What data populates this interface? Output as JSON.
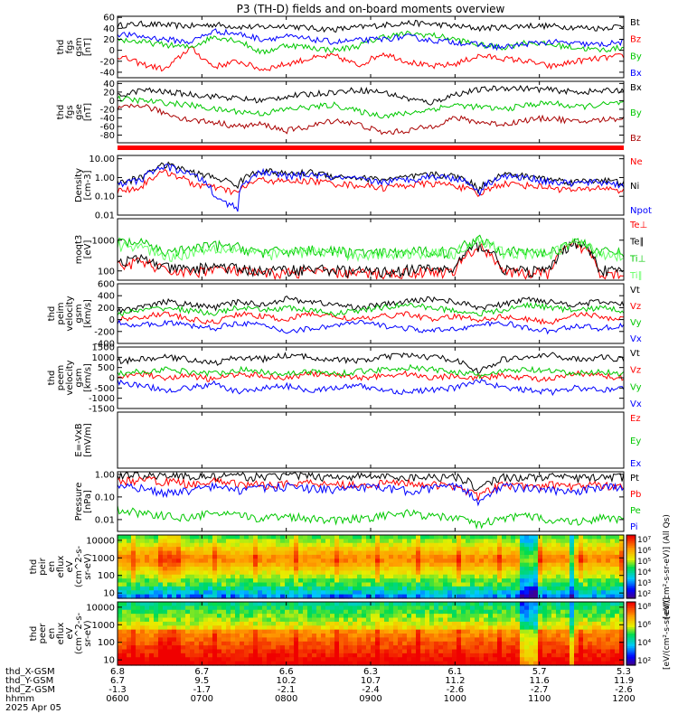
{
  "title": "P3 (TH-D) fields and on-board moments overview",
  "chart_data": [
    {
      "type": "line",
      "ylabel": [
        "thd",
        "fgs",
        "gsm",
        "[nT]"
      ],
      "ylim": [
        -50,
        62
      ],
      "yticks": [
        60,
        40,
        20,
        0,
        -20,
        -40
      ],
      "legend": [
        {
          "name": "Bt",
          "color": "#000000"
        },
        {
          "name": "Bz",
          "color": "#ff0000"
        },
        {
          "name": "By",
          "color": "#00c800"
        },
        {
          "name": "Bx",
          "color": "#0000ff"
        }
      ],
      "series": [
        {
          "name": "Bt",
          "color": "#000000",
          "values": [
            45,
            48,
            46,
            44,
            47,
            43,
            42,
            45,
            40,
            38,
            42,
            46,
            50,
            48,
            44,
            40,
            42,
            45,
            44,
            42,
            40,
            45
          ]
        },
        {
          "name": "Bz",
          "color": "#ff0000",
          "values": [
            -10,
            -25,
            -35,
            5,
            -30,
            -20,
            -35,
            -25,
            -15,
            -10,
            -28,
            -5,
            -20,
            -30,
            -25,
            -10,
            -15,
            -20,
            -30,
            -20,
            -15,
            -10
          ]
        },
        {
          "name": "By",
          "color": "#00c800",
          "values": [
            20,
            15,
            10,
            5,
            25,
            18,
            -5,
            10,
            5,
            0,
            8,
            25,
            30,
            28,
            20,
            10,
            5,
            15,
            10,
            5,
            0,
            5
          ]
        },
        {
          "name": "Bx",
          "color": "#0000ff",
          "values": [
            30,
            25,
            20,
            15,
            35,
            30,
            20,
            25,
            20,
            15,
            18,
            20,
            25,
            18,
            15,
            10,
            5,
            12,
            15,
            12,
            10,
            15
          ]
        }
      ]
    },
    {
      "type": "line",
      "ylabel": [
        "thd",
        "fgs",
        "gse",
        "[nT]"
      ],
      "ylim": [
        -98,
        45
      ],
      "yticks": [
        40,
        20,
        0,
        -20,
        -40,
        -60,
        -80
      ],
      "legend": [
        {
          "name": "Bx",
          "color": "#000000"
        },
        {
          "name": "By",
          "color": "#00c800"
        },
        {
          "name": "Bz",
          "color": "#aa0000"
        }
      ],
      "series": [
        {
          "name": "Bx",
          "color": "#000000",
          "values": [
            10,
            25,
            20,
            15,
            10,
            5,
            0,
            10,
            15,
            20,
            25,
            20,
            5,
            -5,
            15,
            25,
            30,
            28,
            25,
            20,
            22,
            25
          ]
        },
        {
          "name": "By",
          "color": "#00c800",
          "values": [
            5,
            0,
            -5,
            -10,
            -20,
            -25,
            -30,
            -20,
            -15,
            -10,
            -25,
            -35,
            -30,
            -20,
            -10,
            -15,
            -20,
            -10,
            -5,
            -15,
            -10,
            -5
          ]
        },
        {
          "name": "Bz",
          "color": "#aa0000",
          "values": [
            -20,
            -10,
            -30,
            -45,
            -50,
            -60,
            -55,
            -70,
            -60,
            -45,
            -55,
            -75,
            -70,
            -60,
            -40,
            -50,
            -55,
            -45,
            -40,
            -50,
            -45,
            -40
          ]
        }
      ]
    },
    {
      "type": "line",
      "ylabel": [
        "Density",
        "[cm-3]"
      ],
      "yscale": "log",
      "ylim": [
        0.01,
        15
      ],
      "yticks": [
        10.0,
        1.0,
        0.1,
        0.01
      ],
      "ytick_labels": [
        "10.00",
        "1.00",
        "0.10",
        "0.01"
      ],
      "legend": [
        {
          "name": "Ne",
          "color": "#ff0000"
        },
        {
          "name": "Ni",
          "color": "#000000"
        },
        {
          "name": "Npot",
          "color": "#0000ff"
        }
      ],
      "series": [
        {
          "name": "Ne",
          "color": "#ff0000",
          "values": [
            0.2,
            0.3,
            2.0,
            0.5,
            0.3,
            0.15,
            0.8,
            0.6,
            0.7,
            0.5,
            0.4,
            0.3,
            0.4,
            0.5,
            0.4,
            0.1,
            0.5,
            0.4,
            0.3,
            0.2,
            0.3,
            0.2
          ]
        },
        {
          "name": "Ni",
          "color": "#000000",
          "values": [
            0.5,
            1.0,
            5.0,
            2.0,
            1.0,
            0.4,
            2.5,
            1.5,
            2.0,
            1.2,
            1.0,
            0.8,
            1.0,
            1.5,
            1.2,
            0.2,
            1.5,
            1.2,
            0.8,
            0.6,
            0.8,
            0.5
          ]
        },
        {
          "name": "Npot",
          "color": "#0000ff",
          "values": [
            0.4,
            0.8,
            4.0,
            1.5,
            0.08,
            0.02,
            2.0,
            1.2,
            1.5,
            1.0,
            0.8,
            0.6,
            0.8,
            1.2,
            1.0,
            0.15,
            1.2,
            1.0,
            0.6,
            0.5,
            0.6,
            0.4
          ]
        }
      ]
    },
    {
      "type": "line",
      "ylabel": [
        "moqt3",
        "[eV]"
      ],
      "yscale": "log",
      "ylim": [
        50,
        5000
      ],
      "yticks": [
        1000,
        100
      ],
      "ytick_labels": [
        "1000",
        "100"
      ],
      "legend": [
        {
          "name": "Te⊥",
          "color": "#ff0000"
        },
        {
          "name": "Te∥",
          "color": "#000000"
        },
        {
          "name": "Ti⊥",
          "color": "#00c800"
        },
        {
          "name": "Ti∥",
          "color": "#66ff66"
        }
      ],
      "series": [
        {
          "name": "Te⊥",
          "color": "#ff0000",
          "values": [
            150,
            200,
            100,
            90,
            120,
            100,
            80,
            90,
            100,
            90,
            85,
            80,
            90,
            100,
            90,
            600,
            90,
            85,
            90,
            800,
            90,
            85
          ]
        },
        {
          "name": "Te∥",
          "color": "#000000",
          "values": [
            200,
            250,
            130,
            110,
            150,
            120,
            100,
            110,
            120,
            110,
            100,
            95,
            110,
            120,
            110,
            700,
            110,
            100,
            110,
            900,
            110,
            100
          ]
        },
        {
          "name": "Ti⊥",
          "color": "#00c800",
          "values": [
            900,
            800,
            400,
            500,
            700,
            600,
            400,
            450,
            500,
            450,
            400,
            380,
            420,
            450,
            420,
            1200,
            450,
            420,
            400,
            1000,
            420,
            400
          ]
        },
        {
          "name": "Ti∥",
          "color": "#66ff66",
          "values": [
            700,
            600,
            300,
            400,
            600,
            500,
            350,
            400,
            450,
            400,
            350,
            340,
            380,
            400,
            380,
            1000,
            400,
            380,
            350,
            900,
            380,
            350
          ]
        }
      ]
    },
    {
      "type": "line",
      "ylabel": [
        "thd",
        "peim",
        "velocity",
        "gsm",
        "[km/s]"
      ],
      "ylim": [
        -400,
        600
      ],
      "yticks": [
        600,
        400,
        200,
        0,
        -200,
        -400
      ],
      "legend": [
        {
          "name": "Vt",
          "color": "#000000"
        },
        {
          "name": "Vz",
          "color": "#ff0000"
        },
        {
          "name": "Vy",
          "color": "#00c800"
        },
        {
          "name": "Vx",
          "color": "#0000ff"
        }
      ],
      "series": [
        {
          "name": "Vt",
          "color": "#000000",
          "values": [
            150,
            200,
            300,
            250,
            200,
            300,
            250,
            350,
            300,
            250,
            200,
            250,
            300,
            350,
            300,
            200,
            250,
            350,
            300,
            250,
            300,
            250
          ]
        },
        {
          "name": "Vz",
          "color": "#ff0000",
          "values": [
            0,
            50,
            100,
            0,
            -50,
            100,
            50,
            0,
            100,
            50,
            0,
            50,
            100,
            0,
            50,
            0,
            50,
            0,
            -50,
            100,
            50,
            0
          ]
        },
        {
          "name": "Vy",
          "color": "#00c800",
          "values": [
            100,
            150,
            200,
            150,
            100,
            200,
            150,
            200,
            150,
            100,
            150,
            200,
            250,
            200,
            150,
            100,
            150,
            250,
            200,
            150,
            200,
            150
          ]
        },
        {
          "name": "Vx",
          "color": "#0000ff",
          "values": [
            -50,
            -100,
            -50,
            -100,
            -150,
            -50,
            -100,
            -200,
            -150,
            -100,
            -50,
            -100,
            -150,
            -200,
            -150,
            -100,
            -50,
            -150,
            -200,
            -100,
            -150,
            -100
          ]
        }
      ]
    },
    {
      "type": "line",
      "ylabel": [
        "thd",
        "peem",
        "velocity",
        "gsm",
        "[km/s]"
      ],
      "ylim": [
        -1500,
        1500
      ],
      "yticks": [
        1500,
        1000,
        500,
        0,
        -500,
        -1000,
        -1500
      ],
      "legend": [
        {
          "name": "Vt",
          "color": "#000000"
        },
        {
          "name": "Vz",
          "color": "#ff0000"
        },
        {
          "name": "Vy",
          "color": "#00c800"
        },
        {
          "name": "Vx",
          "color": "#0000ff"
        }
      ],
      "series": [
        {
          "name": "Vt",
          "color": "#000000",
          "values": [
            800,
            900,
            1000,
            900,
            700,
            1000,
            900,
            1100,
            1000,
            900,
            800,
            1000,
            1100,
            1000,
            900,
            300,
            900,
            1000,
            1100,
            900,
            1000,
            900
          ]
        },
        {
          "name": "Vz",
          "color": "#ff0000",
          "values": [
            100,
            200,
            0,
            100,
            -100,
            200,
            100,
            0,
            200,
            100,
            0,
            100,
            200,
            0,
            100,
            0,
            100,
            0,
            -100,
            200,
            100,
            0
          ]
        },
        {
          "name": "Vy",
          "color": "#00c800",
          "values": [
            200,
            300,
            400,
            300,
            200,
            400,
            300,
            200,
            300,
            200,
            300,
            400,
            500,
            400,
            300,
            100,
            300,
            400,
            300,
            200,
            300,
            200
          ]
        },
        {
          "name": "Vx",
          "color": "#0000ff",
          "values": [
            -200,
            -400,
            -600,
            -500,
            -300,
            -700,
            -500,
            -400,
            -600,
            -500,
            -400,
            -600,
            -700,
            -600,
            -500,
            -100,
            -500,
            -600,
            -700,
            -500,
            -600,
            -500
          ]
        }
      ]
    },
    {
      "type": "line",
      "ylabel": [
        "E=-VxB",
        "[mV/m]"
      ],
      "legend": [
        {
          "name": "Ez",
          "color": "#ff0000"
        },
        {
          "name": "Ey",
          "color": "#00c800"
        },
        {
          "name": "Ex",
          "color": "#0000ff"
        }
      ],
      "series": []
    },
    {
      "type": "line",
      "ylabel": [
        "Pressure",
        "[nPa]"
      ],
      "yscale": "log",
      "ylim": [
        0.003,
        1.3
      ],
      "yticks": [
        1.0,
        0.1,
        0.01
      ],
      "ytick_labels": [
        "1.00",
        "0.10",
        "0.01"
      ],
      "legend": [
        {
          "name": "Pt",
          "color": "#000000"
        },
        {
          "name": "Pb",
          "color": "#ff0000"
        },
        {
          "name": "Pe",
          "color": "#00c800"
        },
        {
          "name": "Pi",
          "color": "#0000ff"
        }
      ],
      "series": [
        {
          "name": "Pt",
          "color": "#000000",
          "values": [
            0.9,
            1.0,
            0.9,
            0.85,
            0.8,
            0.85,
            0.8,
            0.9,
            0.85,
            0.8,
            0.85,
            0.8,
            0.75,
            0.8,
            0.85,
            0.2,
            0.8,
            0.75,
            0.8,
            0.7,
            0.75,
            0.8
          ]
        },
        {
          "name": "Pb",
          "color": "#ff0000",
          "values": [
            0.5,
            0.6,
            0.5,
            0.4,
            0.5,
            0.4,
            0.35,
            0.4,
            0.45,
            0.4,
            0.35,
            0.4,
            0.45,
            0.35,
            0.3,
            0.1,
            0.35,
            0.3,
            0.35,
            0.3,
            0.35,
            0.3
          ]
        },
        {
          "name": "Pe",
          "color": "#00c800",
          "values": [
            0.03,
            0.02,
            0.015,
            0.012,
            0.02,
            0.015,
            0.012,
            0.015,
            0.012,
            0.01,
            0.012,
            0.015,
            0.02,
            0.015,
            0.012,
            0.006,
            0.012,
            0.015,
            0.01,
            0.008,
            0.012,
            0.01
          ]
        },
        {
          "name": "Pi",
          "color": "#0000ff",
          "values": [
            0.3,
            0.25,
            0.15,
            0.2,
            0.3,
            0.2,
            0.25,
            0.3,
            0.25,
            0.2,
            0.3,
            0.25,
            0.2,
            0.25,
            0.3,
            0.05,
            0.3,
            0.25,
            0.2,
            0.15,
            0.3,
            0.25
          ]
        }
      ]
    },
    {
      "type": "heatmap",
      "ylabel": [
        "thd",
        "peir",
        "en",
        "eflux",
        "eV",
        "(cm^2-s-",
        "sr-eV)"
      ],
      "yscale": "log",
      "ylim": [
        5,
        20000
      ],
      "yticks": [
        10000,
        1000,
        100,
        10
      ],
      "ytick_labels": [
        "10000",
        "1000",
        "100",
        "10"
      ],
      "colorbar": {
        "range_exp": [
          2,
          7
        ],
        "tick_labels": [
          "10⁷",
          "10⁶",
          "10⁵",
          "10⁴",
          "10³",
          "10²"
        ],
        "label": "[eV/(cm²-s-sr-eV)] (All Qs)"
      }
    },
    {
      "type": "heatmap",
      "ylabel": [
        "thd",
        "peer",
        "en",
        "eflux",
        "eV",
        "(cm^2-s-",
        "sr-eV)"
      ],
      "yscale": "log",
      "ylim": [
        5,
        20000
      ],
      "yticks": [
        10000,
        1000,
        100,
        10
      ],
      "ytick_labels": [
        "10000",
        "1000",
        "100",
        "10"
      ],
      "colorbar": {
        "range_exp": [
          2,
          8
        ],
        "tick_labels": [
          "10⁸",
          "10⁶",
          "10⁴",
          "10²"
        ],
        "label": "[eV/(cm²-s-sr-eV)]"
      }
    }
  ],
  "x_axis": {
    "rows": [
      {
        "label": "thd_X-GSM",
        "values": [
          "6.8",
          "6.7",
          "6.6",
          "6.3",
          "6.1",
          "5.7",
          "5.3"
        ]
      },
      {
        "label": "thd_Y-GSM",
        "values": [
          "6.7",
          "9.5",
          "10.2",
          "10.7",
          "11.2",
          "11.6",
          "11.9"
        ]
      },
      {
        "label": "thd_Z-GSM",
        "values": [
          "-1.3",
          "-1.7",
          "-2.1",
          "-2.4",
          "-2.6",
          "-2.7",
          "-2.6"
        ]
      },
      {
        "label": "hhmm",
        "values": [
          "0600",
          "0700",
          "0800",
          "0900",
          "1000",
          "1100",
          "1200"
        ]
      }
    ],
    "date": "2025 Apr 05"
  }
}
